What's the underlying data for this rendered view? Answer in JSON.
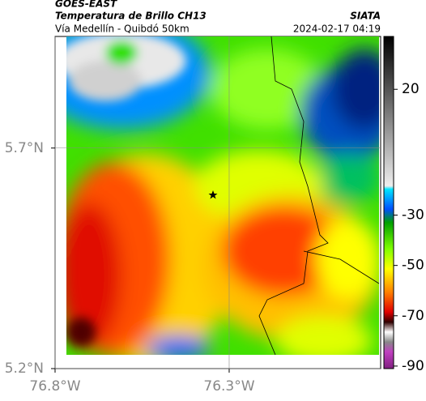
{
  "header": {
    "source": "GOES-EAST",
    "product": "Temperatura de Brillo CH13",
    "route": "Vía Medellín - Quibdó 50km",
    "agency": "SIATA",
    "timestamp": "2024-02-17 04:19"
  },
  "map": {
    "xlim": [
      -76.8,
      -75.865
    ],
    "ylim": [
      5.2,
      5.953
    ],
    "xticks": [
      {
        "value": -76.8,
        "label": "76.8°W"
      },
      {
        "value": -76.3,
        "label": "76.3°W"
      }
    ],
    "yticks": [
      {
        "value": 5.2,
        "label": "5.2°N"
      },
      {
        "value": 5.7,
        "label": "5.7°N"
      }
    ]
  },
  "colorbar": {
    "clim": [
      -91,
      41
    ],
    "ticks": [
      20,
      -30,
      -50,
      -70,
      -90
    ]
  }
}
